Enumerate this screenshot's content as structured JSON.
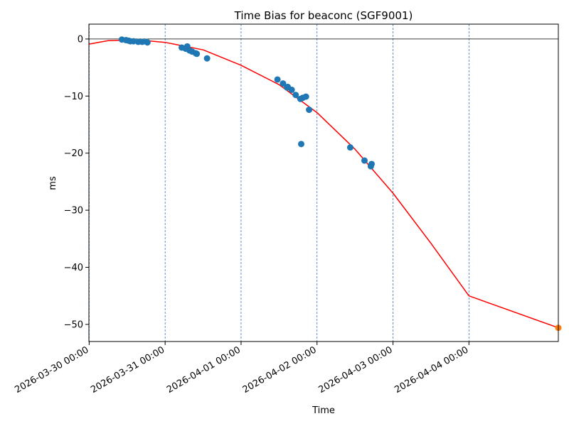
{
  "chart_data": {
    "type": "scatter",
    "title": "Time Bias for beaconc (SGF9001)",
    "xlabel": "Time",
    "ylabel": "ms",
    "x_axis_type": "datetime",
    "xlim": [
      "2026-03-29T23:55",
      "2026-04-05T04:15"
    ],
    "ylim": [
      -53,
      2.6
    ],
    "x_ticks": [
      {
        "value": "2026-03-30T00:00",
        "label": "2026-03-30 00:00"
      },
      {
        "value": "2026-03-31T00:00",
        "label": "2026-03-31 00:00"
      },
      {
        "value": "2026-04-01T00:00",
        "label": "2026-04-01 00:00"
      },
      {
        "value": "2026-04-02T00:00",
        "label": "2026-04-02 00:00"
      },
      {
        "value": "2026-04-03T00:00",
        "label": "2026-04-03 00:00"
      },
      {
        "value": "2026-04-04T00:00",
        "label": "2026-04-04 00:00"
      }
    ],
    "y_ticks": [
      {
        "value": 0,
        "label": "0"
      },
      {
        "value": -10,
        "label": "−10"
      },
      {
        "value": -20,
        "label": "−20"
      },
      {
        "value": -30,
        "label": "−30"
      },
      {
        "value": -40,
        "label": "−40"
      },
      {
        "value": -50,
        "label": "−50"
      }
    ],
    "vertical_gridlines": "dashed at daily ticks",
    "reference_line_y": 0,
    "series": [
      {
        "kind": "scatter",
        "color": "#1f77b4",
        "points": [
          {
            "x": "2026-03-30T10:20",
            "y": -0.1
          },
          {
            "x": "2026-03-30T11:40",
            "y": -0.2
          },
          {
            "x": "2026-03-30T12:30",
            "y": -0.3
          },
          {
            "x": "2026-03-30T13:00",
            "y": -0.4
          },
          {
            "x": "2026-03-30T14:00",
            "y": -0.4
          },
          {
            "x": "2026-03-30T15:30",
            "y": -0.5
          },
          {
            "x": "2026-03-30T16:45",
            "y": -0.5
          },
          {
            "x": "2026-03-30T18:10",
            "y": -0.5
          },
          {
            "x": "2026-03-30T18:25",
            "y": -0.6
          },
          {
            "x": "2026-03-31T05:15",
            "y": -1.5
          },
          {
            "x": "2026-03-31T06:30",
            "y": -1.7
          },
          {
            "x": "2026-03-31T07:00",
            "y": -1.3
          },
          {
            "x": "2026-03-31T07:40",
            "y": -2.0
          },
          {
            "x": "2026-03-31T08:30",
            "y": -2.2
          },
          {
            "x": "2026-03-31T09:40",
            "y": -2.5
          },
          {
            "x": "2026-03-31T10:00",
            "y": -2.6
          },
          {
            "x": "2026-03-31T13:15",
            "y": -3.4
          },
          {
            "x": "2026-04-01T11:30",
            "y": -7.1
          },
          {
            "x": "2026-04-01T13:15",
            "y": -7.8
          },
          {
            "x": "2026-04-01T14:45",
            "y": -8.4
          },
          {
            "x": "2026-04-01T14:30",
            "y": -8.5
          },
          {
            "x": "2026-04-01T16:00",
            "y": -8.9
          },
          {
            "x": "2026-04-01T17:15",
            "y": -9.8
          },
          {
            "x": "2026-04-01T18:45",
            "y": -10.5
          },
          {
            "x": "2026-04-01T19:30",
            "y": -10.3
          },
          {
            "x": "2026-04-01T20:30",
            "y": -10.1
          },
          {
            "x": "2026-04-01T21:30",
            "y": -12.4
          },
          {
            "x": "2026-04-01T19:00",
            "y": -18.4
          },
          {
            "x": "2026-04-02T10:30",
            "y": -19.0
          },
          {
            "x": "2026-04-02T15:00",
            "y": -21.3
          },
          {
            "x": "2026-04-02T17:00",
            "y": -22.3
          },
          {
            "x": "2026-04-02T17:15",
            "y": -21.9
          }
        ]
      },
      {
        "kind": "scatter",
        "color": "#ff7f0e",
        "points": [
          {
            "x": "2026-04-05T04:15",
            "y": -50.6
          }
        ]
      },
      {
        "kind": "line",
        "color": "#ff0000",
        "curve_points": [
          {
            "x": "2026-03-30T00:00",
            "y": -0.9
          },
          {
            "x": "2026-03-30T06:00",
            "y": -0.3
          },
          {
            "x": "2026-03-30T12:00",
            "y": -0.2
          },
          {
            "x": "2026-03-30T18:00",
            "y": -0.3
          },
          {
            "x": "2026-03-31T00:00",
            "y": -0.6
          },
          {
            "x": "2026-03-31T12:00",
            "y": -1.9
          },
          {
            "x": "2026-04-01T00:00",
            "y": -4.6
          },
          {
            "x": "2026-04-01T12:00",
            "y": -8.0
          },
          {
            "x": "2026-04-02T00:00",
            "y": -12.9
          },
          {
            "x": "2026-04-02T12:00",
            "y": -19.3
          },
          {
            "x": "2026-04-03T00:00",
            "y": -27.0
          },
          {
            "x": "2026-04-03T12:00",
            "y": -35.8
          },
          {
            "x": "2026-04-04T00:00",
            "y": -45.0
          },
          {
            "x": "2026-04-05T04:15",
            "y": -50.6
          }
        ]
      }
    ]
  }
}
